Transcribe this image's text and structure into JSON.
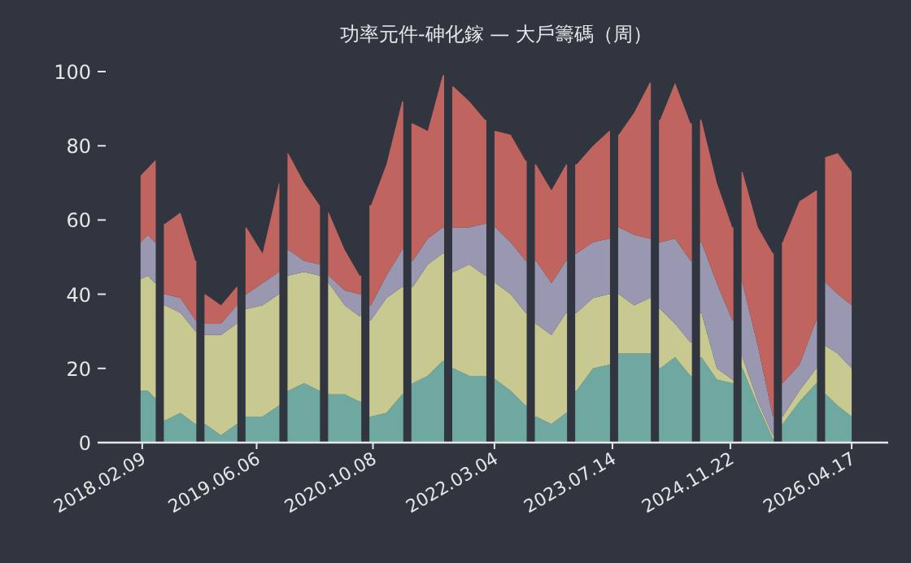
{
  "chart_data": {
    "type": "area",
    "stacked": true,
    "title": "功率元件-砷化鎵 — 大戶籌碼（周）",
    "x": [
      "2018-02-02",
      "2018-03-05",
      "2018-04-03",
      "2018-04-24",
      "2018-05-16",
      "2018-07-20",
      "2018-09-21",
      "2018-10-12",
      "2018-11-01",
      "2019-01-07",
      "2019-03-14",
      "2019-04-03",
      "2019-04-24",
      "2019-07-01",
      "2019-09-08",
      "2019-09-27",
      "2019-10-17",
      "2019-12-23",
      "2020-02-26",
      "2020-03-16",
      "2020-04-05",
      "2020-06-11",
      "2020-08-13",
      "2020-09-06",
      "2020-09-30",
      "2020-12-04",
      "2021-02-08",
      "2021-03-02",
      "2021-03-25",
      "2021-05-27",
      "2021-07-29",
      "2021-08-21",
      "2021-09-12",
      "2021-11-18",
      "2022-01-23",
      "2022-02-15",
      "2022-03-09",
      "2022-05-11",
      "2022-07-13",
      "2022-08-04",
      "2022-08-26",
      "2022-10-30",
      "2022-12-31",
      "2023-01-21",
      "2023-02-13",
      "2023-04-23",
      "2023-06-30",
      "2023-07-21",
      "2023-08-10",
      "2023-10-14",
      "2023-12-18",
      "2024-01-09",
      "2024-01-31",
      "2024-04-03",
      "2024-06-07",
      "2024-06-30",
      "2024-07-23",
      "2024-09-26",
      "2024-11-30",
      "2024-12-22",
      "2025-01-12",
      "2025-03-18",
      "2025-05-20",
      "2025-06-10",
      "2025-06-30",
      "2025-09-09",
      "2025-11-19",
      "2025-12-09",
      "2025-12-30",
      "2026-02-17",
      "2026-04-17"
    ],
    "series": [
      {
        "color": "#6fa8a0",
        "values": [
          14,
          14,
          12,
          null,
          6,
          8,
          5,
          null,
          5,
          2,
          5,
          null,
          7,
          7,
          10,
          null,
          14,
          16,
          14,
          null,
          13,
          13,
          11,
          null,
          7,
          8,
          13,
          null,
          16,
          18,
          22,
          null,
          20,
          18,
          18,
          null,
          17,
          14,
          10,
          null,
          7,
          5,
          8,
          null,
          14,
          20,
          21,
          null,
          24,
          24,
          24,
          null,
          20,
          23,
          18,
          null,
          23,
          17,
          16,
          null,
          20,
          10,
          1,
          null,
          5,
          11,
          16,
          null,
          13,
          10,
          7
        ]
      },
      {
        "color": "#c8c891",
        "values": [
          30,
          31,
          31,
          null,
          31,
          27,
          25,
          null,
          24,
          27,
          27,
          null,
          29,
          30,
          30,
          null,
          31,
          30,
          31,
          null,
          30,
          24,
          23,
          null,
          26,
          31,
          29,
          null,
          26,
          30,
          29,
          null,
          26,
          30,
          27,
          null,
          26,
          26,
          25,
          null,
          25,
          24,
          27,
          null,
          21,
          19,
          19,
          null,
          16,
          13,
          15,
          null,
          16,
          9,
          9,
          null,
          12,
          3,
          1,
          null,
          3,
          1,
          1,
          null,
          2,
          3,
          4,
          null,
          13,
          14,
          13
        ]
      },
      {
        "color": "#9a97b0",
        "values": [
          10,
          11,
          11,
          null,
          3,
          4,
          3,
          null,
          3,
          3,
          5,
          null,
          4,
          6,
          6,
          null,
          7,
          3,
          3,
          null,
          2,
          4,
          6,
          null,
          4,
          6,
          10,
          null,
          7,
          7,
          7,
          null,
          12,
          10,
          14,
          null,
          15,
          14,
          14,
          null,
          17,
          14,
          14,
          null,
          16,
          15,
          15,
          null,
          18,
          19,
          16,
          null,
          18,
          23,
          22,
          null,
          19,
          23,
          16,
          null,
          20,
          15,
          5,
          null,
          9,
          7,
          13,
          null,
          17,
          16,
          17
        ]
      },
      {
        "color": "#c0645f",
        "values": [
          18,
          18,
          22,
          null,
          19,
          23,
          16,
          null,
          8,
          5,
          5,
          null,
          18,
          8,
          24,
          null,
          26,
          21,
          16,
          null,
          17,
          11,
          5,
          null,
          27,
          30,
          40,
          null,
          37,
          29,
          41,
          null,
          38,
          34,
          28,
          null,
          26,
          29,
          27,
          null,
          26,
          25,
          26,
          null,
          24,
          26,
          29,
          null,
          25,
          33,
          42,
          null,
          33,
          42,
          37,
          null,
          33,
          27,
          25,
          null,
          30,
          32,
          44,
          null,
          38,
          44,
          35,
          null,
          34,
          38,
          36
        ]
      }
    ],
    "xlim": [
      "2017-08-05",
      "2026-09-18"
    ],
    "xticks": [
      {
        "value": "2018-02-09",
        "label": "2018.02.09"
      },
      {
        "value": "2019-06-06",
        "label": "2019.06.06"
      },
      {
        "value": "2020-10-08",
        "label": "2020.10.08"
      },
      {
        "value": "2022-03-04",
        "label": "2022.03.04"
      },
      {
        "value": "2023-07-14",
        "label": "2023.07.14"
      },
      {
        "value": "2024-11-22",
        "label": "2024.11.22"
      },
      {
        "value": "2026-04-17",
        "label": "2026.04.17"
      }
    ],
    "ylim": [
      0,
      100
    ],
    "yticks": [
      0,
      20,
      40,
      60,
      80,
      100
    ]
  }
}
